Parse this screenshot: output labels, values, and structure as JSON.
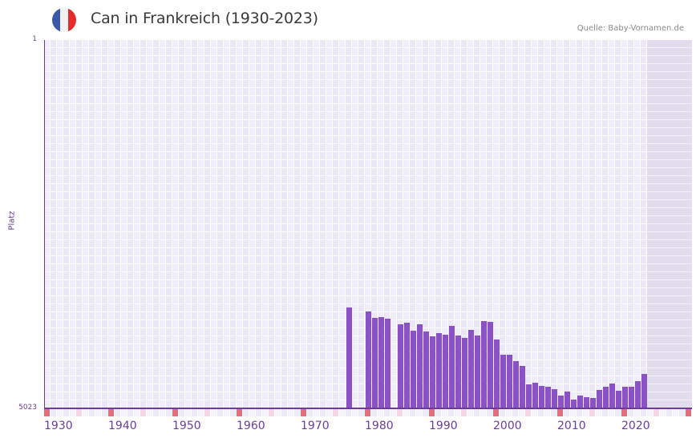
{
  "header": {
    "title": "Can in Frankreich (1930-2023)",
    "source": "Quelle: Baby-Vornamen.de",
    "flag_icon": "france-flag-icon",
    "flag_colors": [
      "#3a5aa8",
      "#f2f2f2",
      "#e52b2b"
    ]
  },
  "colors": {
    "bar": "#8b52c6",
    "axis": "#6a3d9a",
    "grid_a": "#f1eefb",
    "grid_b": "#ebe7f7",
    "future_shade": "#e2dded",
    "tick_decade": "#e0707a",
    "tick_half": "#f4d7e0"
  },
  "chart_data": {
    "type": "bar",
    "title": "Can in Frankreich (1930-2023)",
    "xlabel": "",
    "ylabel": "Platz",
    "ylim": [
      5023,
      1
    ],
    "y_ticks": [
      "1",
      "5023"
    ],
    "x_range": [
      1930,
      2030
    ],
    "x_ticks": [
      "1930",
      "1940",
      "1950",
      "1960",
      "1970",
      "1980",
      "1990",
      "2000",
      "2010",
      "2020"
    ],
    "grid": true,
    "legend": null,
    "note": "Lower rank number = more popular; y-axis inverted (rank 1 at top). Shaded region after 2023 = no data.",
    "categories": [
      1977,
      1980,
      1981,
      1982,
      1983,
      1985,
      1986,
      1987,
      1988,
      1989,
      1990,
      1991,
      1992,
      1993,
      1994,
      1995,
      1996,
      1997,
      1998,
      1999,
      2000,
      2001,
      2002,
      2003,
      2004,
      2005,
      2006,
      2007,
      2008,
      2009,
      2010,
      2011,
      2012,
      2013,
      2014,
      2015,
      2016,
      2017,
      2018,
      2019,
      2020,
      2021,
      2022,
      2023
    ],
    "values": [
      3647,
      3702,
      3789,
      3778,
      3800,
      3877,
      3855,
      3964,
      3877,
      3975,
      4040,
      3997,
      4019,
      3898,
      4030,
      4062,
      3953,
      4030,
      3833,
      3844,
      4084,
      4292,
      4292,
      4379,
      4445,
      4696,
      4674,
      4718,
      4729,
      4761,
      4849,
      4794,
      4903,
      4849,
      4870,
      4881,
      4772,
      4729,
      4685,
      4783,
      4729,
      4729,
      4651,
      4553
    ]
  }
}
